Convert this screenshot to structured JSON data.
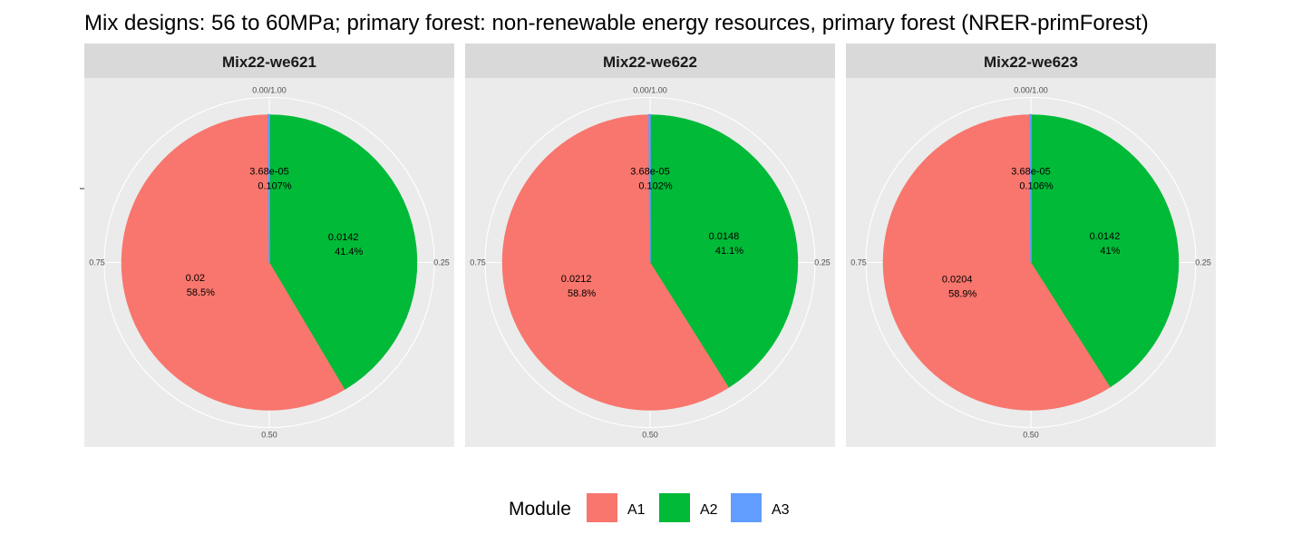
{
  "title": "Mix designs: 56 to 60MPa; primary forest: non-renewable energy resources, primary forest (NRER-primForest)",
  "colors": {
    "A1": "#F8766D",
    "A2": "#00BA38",
    "A3": "#619CFF"
  },
  "legend": {
    "title": "Module",
    "items": [
      "A1",
      "A2",
      "A3"
    ],
    "position": "bottom"
  },
  "chart_data": [
    {
      "type": "pie",
      "panel": "Mix22-we621",
      "categories": [
        "A1",
        "A2",
        "A3"
      ],
      "values": [
        0.02,
        0.0142,
        3.68e-05
      ],
      "value_labels": [
        "0.02",
        "0.0142",
        "3.68e-05"
      ],
      "percent_labels": [
        "58.5%",
        "41.4%",
        "0.107%"
      ],
      "angle_ticks": [
        "0.00/1.00",
        "0.25",
        "0.50",
        "0.75"
      ],
      "legend_position": "bottom"
    },
    {
      "type": "pie",
      "panel": "Mix22-we622",
      "categories": [
        "A1",
        "A2",
        "A3"
      ],
      "values": [
        0.0212,
        0.0148,
        3.68e-05
      ],
      "value_labels": [
        "0.0212",
        "0.0148",
        "3.68e-05"
      ],
      "percent_labels": [
        "58.8%",
        "41.1%",
        "0.102%"
      ],
      "angle_ticks": [
        "0.00/1.00",
        "0.25",
        "0.50",
        "0.75"
      ],
      "legend_position": "bottom"
    },
    {
      "type": "pie",
      "panel": "Mix22-we623",
      "categories": [
        "A1",
        "A2",
        "A3"
      ],
      "values": [
        0.0204,
        0.0142,
        3.68e-05
      ],
      "value_labels": [
        "0.0204",
        "0.0142",
        "3.68e-05"
      ],
      "percent_labels": [
        "58.9%",
        "41%",
        "0.106%"
      ],
      "angle_ticks": [
        "0.00/1.00",
        "0.25",
        "0.50",
        "0.75"
      ],
      "legend_position": "bottom"
    }
  ]
}
